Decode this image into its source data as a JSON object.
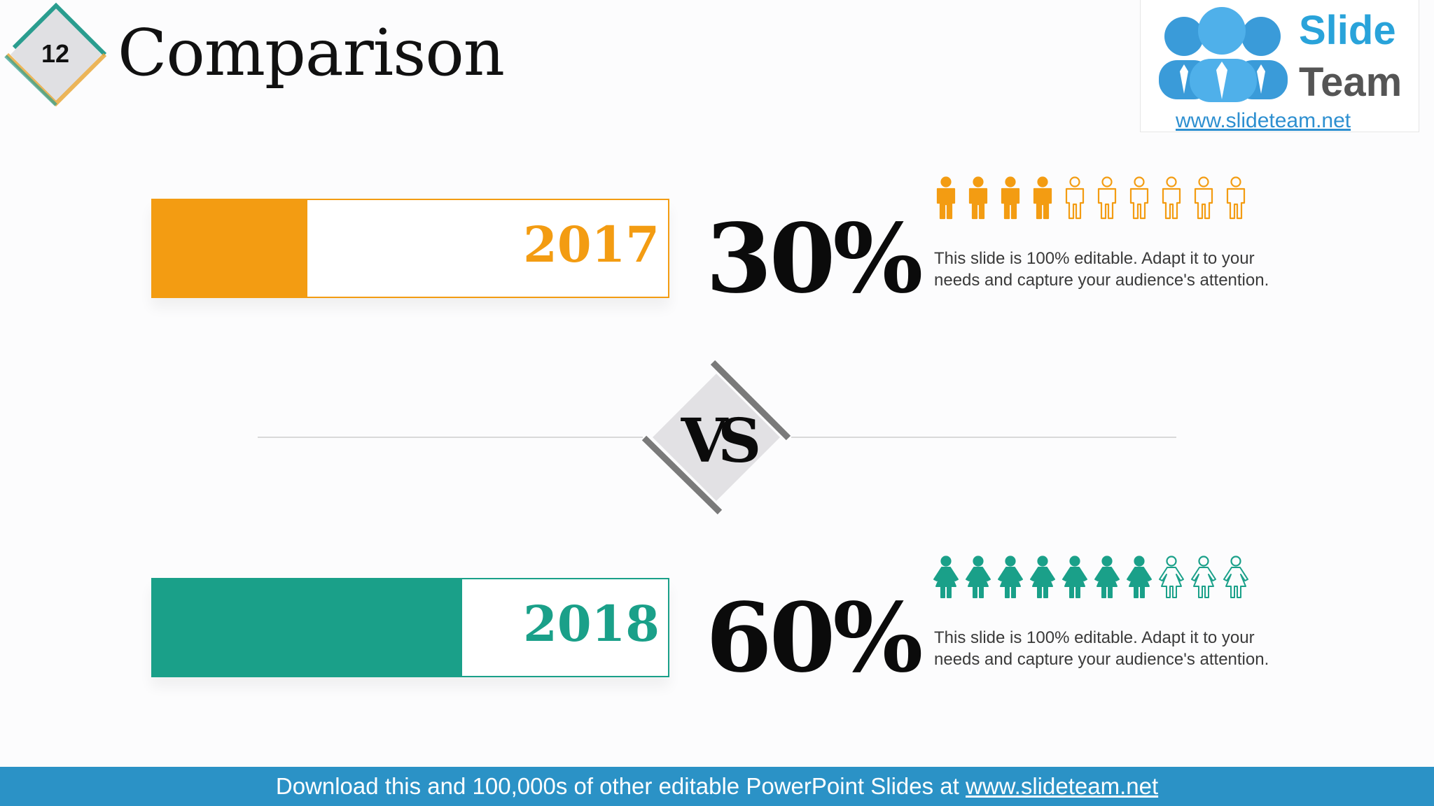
{
  "slide": {
    "number": "12",
    "title": "Comparison"
  },
  "logo": {
    "word1": "Slide",
    "word2": "Team",
    "url": "www.slideteam.net"
  },
  "comparisons": [
    {
      "year": "2017",
      "percent_label": "30%",
      "percent_value": 30,
      "filled_icons": 4,
      "total_icons": 10,
      "icon": "male-person-icon",
      "color": "#f39c12",
      "description": "This slide is 100% editable. Adapt it to your needs and capture your audience's attention."
    },
    {
      "year": "2018",
      "percent_label": "60%",
      "percent_value": 60,
      "filled_icons": 7,
      "total_icons": 10,
      "icon": "female-person-icon",
      "color": "#1aa089",
      "description": "This slide is 100% editable. Adapt it to your needs and capture your audience's attention."
    }
  ],
  "vs_label": "VS",
  "footer": {
    "text": "Download this and 100,000s of other editable PowerPoint Slides at ",
    "link": "www.slideteam.net"
  },
  "colors": {
    "orange": "#f39c12",
    "teal": "#1aa089",
    "footer_blue": "#2b92c6",
    "logo_blue": "#29a3da"
  }
}
